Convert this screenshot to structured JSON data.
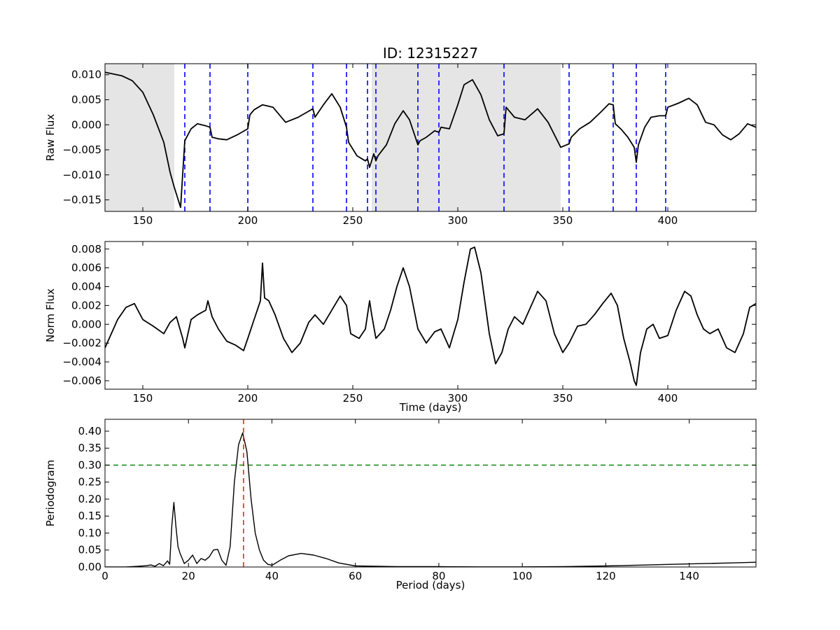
{
  "title": "ID: 12315227",
  "chart_data": [
    {
      "type": "line",
      "panel": "raw",
      "xlabel": "",
      "ylabel": "Raw Flux",
      "xlim": [
        132,
        442
      ],
      "ylim": [
        -0.0173,
        0.0122
      ],
      "xticks": [
        150,
        200,
        250,
        300,
        350,
        400
      ],
      "xtick_labels": [
        "150",
        "200",
        "250",
        "300",
        "350",
        "400"
      ],
      "yticks": [
        0.01,
        0.005,
        0.0,
        -0.005,
        -0.01,
        -0.015
      ],
      "ytick_labels": [
        "0.010",
        "0.005",
        "0.000",
        "−0.005",
        "−0.010",
        "−0.015"
      ],
      "shaded_spans": [
        [
          132,
          165
        ],
        [
          259,
          349
        ]
      ],
      "shade_color": "#e5e5e5",
      "quarter_boundaries": [
        170,
        182,
        200,
        231,
        247,
        257,
        261,
        281,
        291,
        322,
        353,
        374,
        385,
        399
      ],
      "boundary_color": "#0000ff",
      "line_color": "#000000",
      "series": [
        {
          "x": [
            132,
            140,
            145,
            150,
            155,
            160,
            163,
            165,
            168,
            170,
            173,
            176,
            180,
            182,
            183,
            186,
            190,
            195,
            200,
            201,
            203,
            207,
            212,
            218,
            224,
            231,
            232,
            236,
            240,
            244,
            247,
            248,
            252,
            256,
            257,
            258,
            260,
            261,
            262,
            266,
            270,
            274,
            277,
            281,
            282,
            285,
            289,
            291,
            292,
            296,
            300,
            303,
            307,
            311,
            315,
            319,
            322,
            323,
            327,
            332,
            338,
            343,
            349,
            353,
            354,
            358,
            363,
            368,
            372,
            374,
            375,
            378,
            381,
            384,
            385,
            386,
            389,
            392,
            396,
            399,
            400,
            405,
            410,
            414,
            418,
            422,
            426,
            430,
            434,
            438,
            442
          ],
          "y": [
            0.0105,
            0.0098,
            0.0088,
            0.0065,
            0.002,
            -0.0035,
            -0.0095,
            -0.0125,
            -0.0165,
            -0.0032,
            -0.0008,
            0.0002,
            -0.0002,
            -0.0005,
            -0.0025,
            -0.0028,
            -0.003,
            -0.002,
            -0.0008,
            0.002,
            0.003,
            0.004,
            0.0035,
            0.0005,
            0.0015,
            0.0032,
            0.0015,
            0.004,
            0.0062,
            0.0035,
            -0.0005,
            -0.0035,
            -0.0062,
            -0.0072,
            -0.0068,
            -0.0085,
            -0.0058,
            -0.0072,
            -0.0062,
            -0.004,
            0.0002,
            0.0028,
            0.001,
            -0.004,
            -0.0032,
            -0.0025,
            -0.0012,
            -0.0015,
            -0.0005,
            -0.0008,
            0.004,
            0.008,
            0.009,
            0.006,
            0.001,
            -0.0022,
            -0.0018,
            0.0035,
            0.0015,
            0.001,
            0.0032,
            0.0005,
            -0.0045,
            -0.0038,
            -0.0025,
            -0.0008,
            0.0005,
            0.0025,
            0.0042,
            0.004,
            0.0002,
            -0.001,
            -0.0025,
            -0.0045,
            -0.0075,
            -0.004,
            -0.0005,
            0.0015,
            0.0018,
            0.0018,
            0.0035,
            0.0043,
            0.0053,
            0.004,
            0.0005,
            0.0,
            -0.002,
            -0.003,
            -0.0018,
            0.0002,
            -0.0005
          ]
        }
      ]
    },
    {
      "type": "line",
      "panel": "norm",
      "xlabel": "Time (days)",
      "ylabel": "Norm Flux",
      "xlim": [
        132,
        442
      ],
      "ylim": [
        -0.0069,
        0.0088
      ],
      "xticks": [
        150,
        200,
        250,
        300,
        350,
        400
      ],
      "xtick_labels": [
        "150",
        "200",
        "250",
        "300",
        "350",
        "400"
      ],
      "yticks": [
        0.008,
        0.006,
        0.004,
        0.002,
        0.0,
        -0.002,
        -0.004,
        -0.006
      ],
      "ytick_labels": [
        "0.008",
        "0.006",
        "0.004",
        "0.002",
        "0.000",
        "−0.002",
        "−0.004",
        "−0.006"
      ],
      "line_color": "#000000",
      "series": [
        {
          "x": [
            132,
            135,
            138,
            142,
            146,
            150,
            155,
            160,
            163,
            166,
            169,
            170,
            173,
            176,
            180,
            181,
            183,
            186,
            190,
            194,
            198,
            200,
            203,
            206,
            207,
            208,
            210,
            213,
            217,
            221,
            225,
            229,
            232,
            236,
            240,
            244,
            247,
            249,
            253,
            256,
            258,
            259,
            261,
            265,
            268,
            271,
            274,
            277,
            281,
            285,
            289,
            292,
            296,
            300,
            303,
            306,
            308,
            311,
            315,
            318,
            321,
            324,
            327,
            331,
            334,
            338,
            342,
            346,
            350,
            353,
            357,
            361,
            365,
            369,
            373,
            376,
            379,
            382,
            384,
            385,
            387,
            390,
            393,
            396,
            400,
            404,
            408,
            411,
            414,
            417,
            420,
            424,
            428,
            432,
            436,
            439,
            442
          ],
          "y": [
            -0.0025,
            -0.001,
            0.0005,
            0.0018,
            0.0022,
            0.0005,
            -0.0002,
            -0.001,
            0.0002,
            0.0008,
            -0.0015,
            -0.0025,
            0.0005,
            0.001,
            0.0015,
            0.0025,
            0.0008,
            -0.0005,
            -0.0018,
            -0.0022,
            -0.0028,
            -0.0015,
            0.0005,
            0.0025,
            0.0065,
            0.0028,
            0.0025,
            0.001,
            -0.0015,
            -0.003,
            -0.002,
            0.0002,
            0.001,
            0.0,
            0.0015,
            0.003,
            0.002,
            -0.001,
            -0.0015,
            -0.0005,
            0.0025,
            0.001,
            -0.0015,
            -0.0005,
            0.0015,
            0.004,
            0.006,
            0.004,
            -0.0005,
            -0.002,
            -0.0008,
            -0.0005,
            -0.0025,
            0.0005,
            0.0045,
            0.008,
            0.0082,
            0.0055,
            -0.001,
            -0.0042,
            -0.003,
            -0.0005,
            0.0008,
            0.0,
            0.0015,
            0.0035,
            0.0025,
            -0.001,
            -0.003,
            -0.002,
            -0.0002,
            0.0,
            0.001,
            0.0022,
            0.0033,
            0.002,
            -0.0015,
            -0.004,
            -0.006,
            -0.0065,
            -0.003,
            -0.0005,
            0.0,
            -0.0015,
            -0.0012,
            0.0015,
            0.0035,
            0.003,
            0.001,
            -0.0005,
            -0.001,
            -0.0005,
            -0.0025,
            -0.003,
            -0.001,
            0.0018,
            0.0022
          ]
        }
      ]
    },
    {
      "type": "line",
      "panel": "periodogram",
      "xlabel": "Period (days)",
      "ylabel": "Periodogram",
      "xlim": [
        0,
        156
      ],
      "ylim": [
        0,
        0.435
      ],
      "xticks": [
        0,
        20,
        40,
        60,
        80,
        100,
        120,
        140
      ],
      "xtick_labels": [
        "0",
        "20",
        "40",
        "60",
        "80",
        "100",
        "120",
        "140"
      ],
      "yticks": [
        0.0,
        0.05,
        0.1,
        0.15,
        0.2,
        0.25,
        0.3,
        0.35,
        0.4
      ],
      "ytick_labels": [
        "0.00",
        "0.05",
        "0.10",
        "0.15",
        "0.20",
        "0.25",
        "0.30",
        "0.35",
        "0.40"
      ],
      "peak_period": 33.2,
      "peak_color": "#ff0000",
      "threshold": 0.3,
      "threshold_color": "#008000",
      "line_color": "#000000",
      "series": [
        {
          "x": [
            0,
            5,
            8,
            10,
            11,
            12,
            13,
            14,
            15,
            15.5,
            16,
            16.5,
            17,
            17.5,
            18,
            19,
            20,
            21,
            22,
            23,
            24,
            25,
            26,
            27,
            28,
            29,
            30,
            31,
            32,
            33,
            34,
            35,
            36,
            37,
            38,
            39,
            40,
            42,
            44,
            47,
            50,
            53,
            56,
            60,
            70,
            80,
            90,
            100,
            110,
            120,
            130,
            140,
            150,
            156
          ],
          "y": [
            0.0,
            0.0,
            0.002,
            0.004,
            0.006,
            0.002,
            0.01,
            0.004,
            0.018,
            0.008,
            0.12,
            0.19,
            0.12,
            0.06,
            0.04,
            0.01,
            0.02,
            0.035,
            0.01,
            0.025,
            0.02,
            0.03,
            0.05,
            0.052,
            0.02,
            0.005,
            0.06,
            0.25,
            0.36,
            0.395,
            0.34,
            0.2,
            0.1,
            0.05,
            0.02,
            0.008,
            0.005,
            0.02,
            0.033,
            0.04,
            0.035,
            0.025,
            0.012,
            0.003,
            0.001,
            0.001,
            0.0005,
            0.0005,
            0.001,
            0.003,
            0.006,
            0.009,
            0.012,
            0.014
          ]
        }
      ]
    }
  ]
}
